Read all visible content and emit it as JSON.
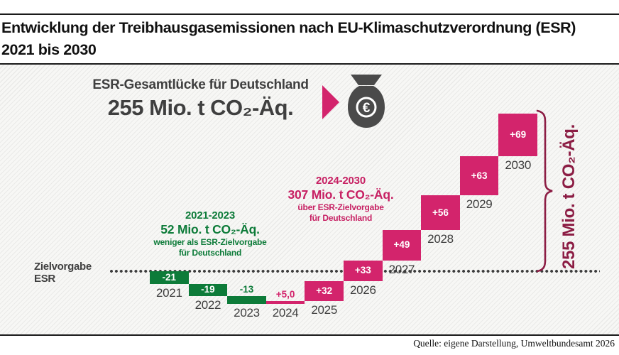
{
  "theme": {
    "pink": "#d3246c",
    "green": "#0d7b39",
    "note-pink": "#c72063",
    "maroon": "#8c1d44",
    "gray": "#3f3f3f",
    "dots": "#3d3d3d"
  },
  "header": {
    "title_line1": "Entwicklung der Treibhausgasemissionen nach EU-Klimaschutzverordnung (ESR)",
    "title_line2": "2021 bis 2030"
  },
  "infographic": {
    "gap_label": "ESR-Gesamtlücke für Deutschland",
    "gap_value": "255 Mio. t CO₂-Äq.",
    "euro_symbol": "€"
  },
  "annotations": {
    "green": {
      "period": "2021-2023",
      "value": "52 Mio. t CO₂-Äq.",
      "line1": "weniger als ESR-Zielvorgabe",
      "line2": "für Deutschland"
    },
    "pink": {
      "period": "2024-2030",
      "value": "307 Mio. t CO₂-Äq.",
      "line1": "über ESR-Zielvorgabe",
      "line2": "für Deutschland"
    }
  },
  "chart_data": {
    "type": "waterfall",
    "baseline_label": "Zielvorgabe ESR",
    "baseline_value": 0,
    "unit": "Mio. t CO₂-Äq.",
    "colors": {
      "decrease": "#0d7b39",
      "increase": "#d3246c"
    },
    "bars": [
      {
        "year": "2021",
        "delta": -21,
        "label": "-21",
        "label_pos": "inside"
      },
      {
        "year": "2022",
        "delta": -19,
        "label": "-19",
        "label_pos": "inside"
      },
      {
        "year": "2023",
        "delta": -13,
        "label": "-13",
        "label_pos": "above"
      },
      {
        "year": "2024",
        "delta": 5,
        "label": "+5,0",
        "label_pos": "above"
      },
      {
        "year": "2025",
        "delta": 32,
        "label": "+32",
        "label_pos": "inside"
      },
      {
        "year": "2026",
        "delta": 33,
        "label": "+33",
        "label_pos": "inside"
      },
      {
        "year": "2027",
        "delta": 49,
        "label": "+49",
        "label_pos": "inside"
      },
      {
        "year": "2028",
        "delta": 56,
        "label": "+56",
        "label_pos": "inside"
      },
      {
        "year": "2029",
        "delta": 63,
        "label": "+63",
        "label_pos": "inside"
      },
      {
        "year": "2030",
        "delta": 69,
        "label": "+69",
        "label_pos": "inside"
      }
    ],
    "brace_label": "255 Mio. t CO₂-Äq."
  },
  "footer": {
    "source": "Quelle: eigene Darstellung, Umweltbundesamt 2026"
  }
}
